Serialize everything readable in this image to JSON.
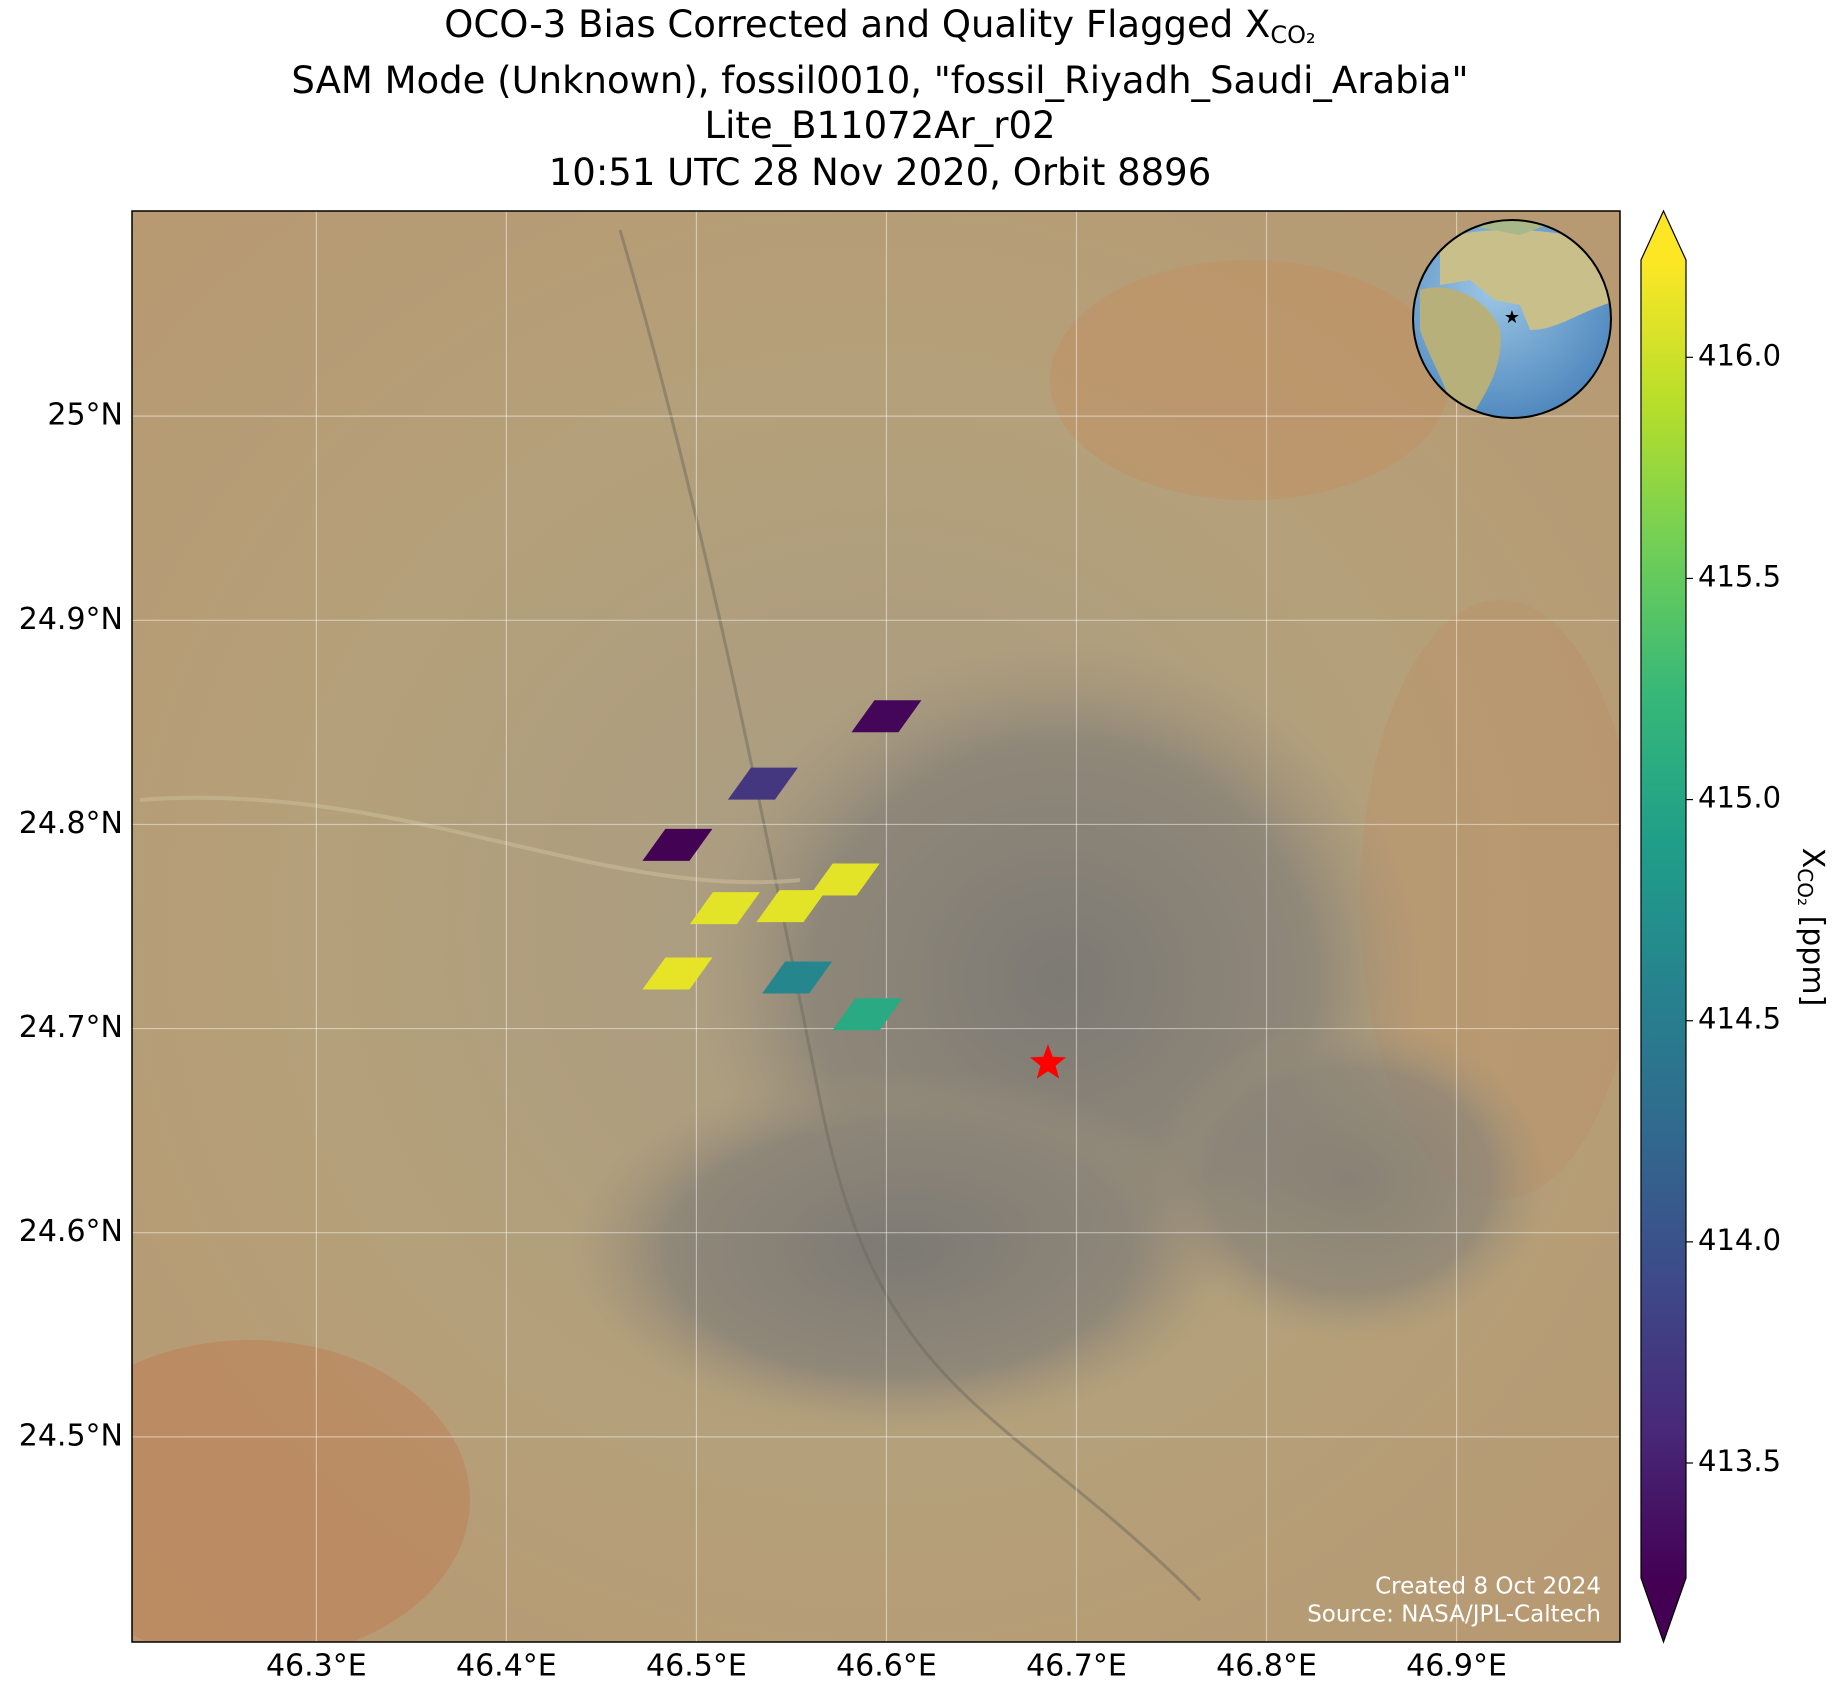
{
  "chart_data": {
    "type": "footprint-map",
    "title": [
      "OCO-3 Bias Corrected and Quality Flagged X",
      "SAM Mode (Unknown), fossil0010, \"fossil_Riyadh_Saudi_Arabia\"",
      "Lite_B11072Ar_r02",
      "10:51 UTC 28 Nov 2020, Orbit 8896"
    ],
    "title_subscript": "CO₂",
    "x": [
      46.6,
      46.535,
      46.49,
      46.515,
      46.55,
      46.578,
      46.49,
      46.553,
      46.59
    ],
    "y": [
      24.853,
      24.82,
      24.79,
      24.759,
      24.76,
      24.773,
      24.727,
      24.725,
      24.707
    ],
    "values": [
      413.28,
      413.72,
      413.25,
      416.1,
      416.1,
      416.1,
      416.12,
      414.62,
      415.05
    ],
    "colormap": "viridis",
    "clim": [
      413.24,
      416.22
    ],
    "colorbar_ticks": [
      413.5,
      {
        "value": 414,
        "label": "414.0"
      },
      414.5,
      {
        "value": 415,
        "label": "415.0"
      },
      415.5,
      {
        "value": 416,
        "label": "416.0"
      }
    ],
    "colorbar_label": {
      "main": "X",
      "sub": "CO₂",
      "unit": "[ppm]"
    },
    "target": {
      "x": 46.685,
      "y": 24.683,
      "color": "#ff0000"
    },
    "xlim": [
      46.203,
      46.986
    ],
    "ylim": [
      24.3995,
      25.1005
    ],
    "xticks": [
      {
        "value": 46.3,
        "label": "46.3°E"
      },
      {
        "value": 46.4,
        "label": "46.4°E"
      },
      {
        "value": 46.5,
        "label": "46.5°E"
      },
      {
        "value": 46.6,
        "label": "46.6°E"
      },
      {
        "value": 46.7,
        "label": "46.7°E"
      },
      {
        "value": 46.8,
        "label": "46.8°E"
      },
      {
        "value": 46.9,
        "label": "46.9°E"
      }
    ],
    "yticks": [
      {
        "value": 24.5,
        "label": "24.5°N"
      },
      {
        "value": 24.6,
        "label": "24.6°N"
      },
      {
        "value": 24.7,
        "label": "24.7°N"
      },
      {
        "value": 24.8,
        "label": "24.8°N"
      },
      {
        "value": 24.9,
        "label": "24.9°N"
      },
      {
        "value": 25.0,
        "label": "25°N"
      }
    ],
    "grid": true,
    "credits": [
      "Created 8 Oct 2024",
      "Source: NASA/JPL-Caltech"
    ]
  }
}
